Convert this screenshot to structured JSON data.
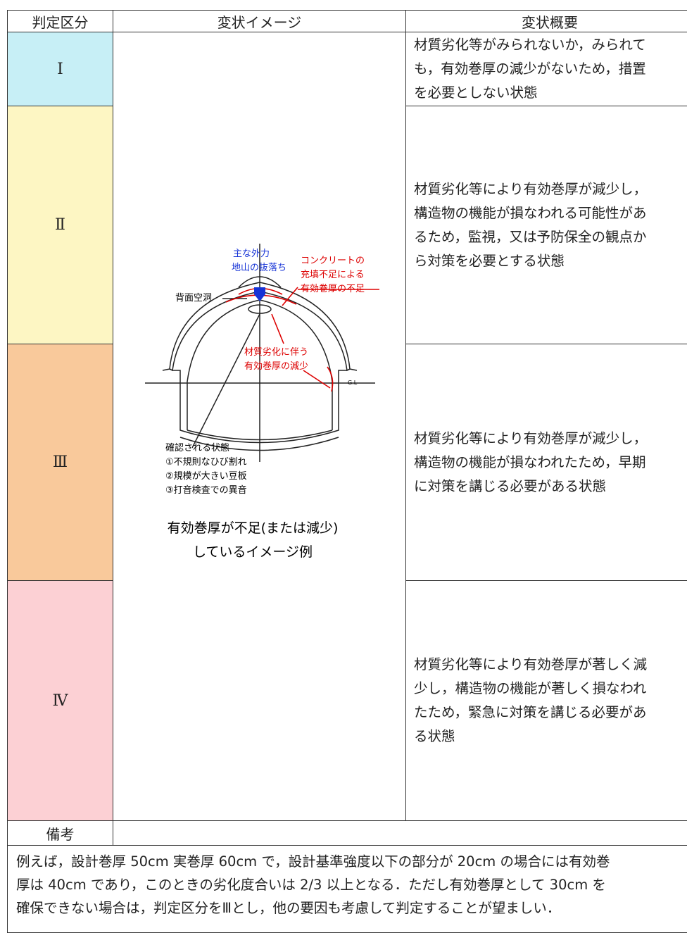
{
  "header": {
    "columns": [
      "判定区分",
      "変状イメージ",
      "変状概要"
    ]
  },
  "rows": [
    {
      "grade": "Ⅰ",
      "summary": [
        "材質劣化等がみられないか，みられて",
        "も，有効巻厚の減少がないため，措置",
        "を必要としない状態"
      ]
    },
    {
      "grade": "Ⅱ",
      "summary": [
        "材質劣化等により有効巻厚が減少し，",
        "構造物の機能が損なわれる可能性があ",
        "るため，監視，又は予防保全の観点か",
        "ら対策を必要とする状態"
      ]
    },
    {
      "grade": "Ⅲ",
      "summary": [
        "材質劣化等により有効巻厚が減少し，",
        "構造物の機能が損なわれたため，早期",
        "に対策を講じる必要がある状態"
      ]
    },
    {
      "grade": "Ⅳ",
      "summary": [
        "材質劣化等により有効巻厚が著しく減",
        "少し，構造物の機能が著しく損なわれ",
        "たため，緊急に対策を講じる必要があ",
        "る状態"
      ]
    }
  ],
  "image": {
    "labels": {
      "force": "主な外力",
      "fall": "地山の抜落ち",
      "concrete": [
        "コンクリートの",
        "充填不足による",
        "有効巻厚の不足"
      ],
      "cavity": "背面空洞",
      "deterioration": [
        "材質劣化に伴う",
        "有効巻厚の減少"
      ],
      "gl": "G.L",
      "observed": [
        "確認される状態",
        "①不規則なひび割れ",
        "②規模が大きい豆板",
        "③打音検査での異音"
      ]
    },
    "caption": [
      "有効巻厚が不足(または減少)",
      "しているイメージ例"
    ]
  },
  "remarks": {
    "title": "備考",
    "text": [
      "例えば，設計巻厚 50cm 実巻厚 60cm で，設計基準強度以下の部分が 20cm の場合には有効巻",
      "厚は 40cm であり，このときの劣化度合いは 2/3 以上となる．ただし有効巻厚として 30cm を",
      "確保できない場合は，判定区分をⅢとし，他の要因も考慮して判定することが望ましい．"
    ]
  }
}
